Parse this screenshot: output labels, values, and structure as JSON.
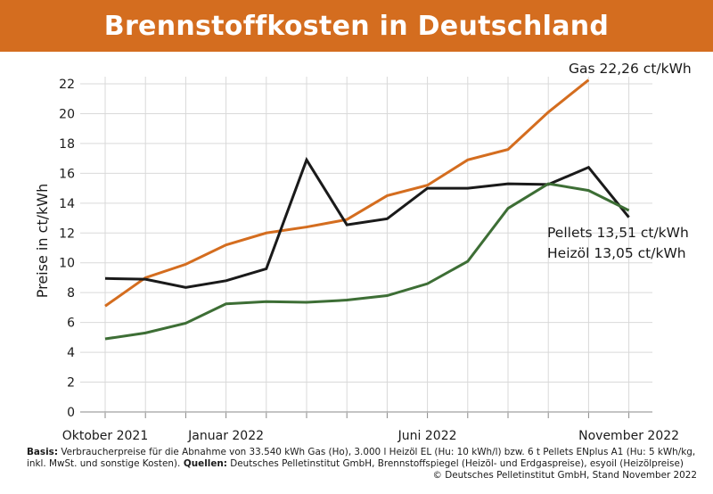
{
  "header": {
    "title": "Brennstoffkosten in Deutschland"
  },
  "chart_data": {
    "type": "line",
    "title": "Brennstoffkosten in Deutschland",
    "ylabel": "Preise in ct/kWh",
    "xlabel": "",
    "ylim": [
      0,
      22
    ],
    "yticks": [
      0,
      2,
      4,
      6,
      8,
      10,
      12,
      14,
      16,
      18,
      20,
      22
    ],
    "grid": true,
    "x": [
      "2021-10",
      "2021-11",
      "2021-12",
      "2022-01",
      "2022-02",
      "2022-03",
      "2022-04",
      "2022-05",
      "2022-06",
      "2022-07",
      "2022-08",
      "2022-09",
      "2022-10",
      "2022-11"
    ],
    "xtick_labels": [
      {
        "x": "2021-10",
        "label": "Oktober 2021"
      },
      {
        "x": "2022-01",
        "label": "Januar 2022"
      },
      {
        "x": "2022-06",
        "label": "Juni 2022"
      },
      {
        "x": "2022-11",
        "label": "November 2022"
      }
    ],
    "series": [
      {
        "name": "Gas",
        "color": "#d46d1f",
        "values": [
          7.1,
          9.0,
          9.9,
          11.2,
          12.0,
          12.4,
          12.9,
          14.5,
          15.2,
          16.9,
          17.6,
          20.1,
          22.26,
          null
        ]
      },
      {
        "name": "Heizöl",
        "color": "#1a1a1a",
        "values": [
          8.95,
          8.9,
          8.35,
          8.8,
          9.6,
          16.9,
          12.55,
          12.95,
          15.0,
          15.0,
          15.3,
          15.25,
          16.4,
          13.05
        ]
      },
      {
        "name": "Pellets",
        "color": "#3d6e35",
        "values": [
          4.9,
          5.3,
          5.95,
          7.25,
          7.4,
          7.35,
          7.5,
          7.8,
          8.6,
          10.1,
          13.65,
          15.3,
          14.85,
          13.51
        ]
      }
    ],
    "annotations": [
      {
        "series": "Gas",
        "text": "Gas 22,26 ct/kWh"
      },
      {
        "series": "Pellets",
        "text": "Pellets 13,51 ct/kWh"
      },
      {
        "series": "Heizöl",
        "text": "Heizöl 13,05 ct/kWh"
      }
    ]
  },
  "footer": {
    "basis_label": "Basis:",
    "basis_text": " Verbraucherpreise für die Abnahme von 33.540 kWh Gas (Ho), 3.000 l Heizöl EL (Hu: 10 kWh/l) bzw. 6 t Pellets ENplus A1 (Hu: 5 kWh/kg,",
    "basis_text2": "inkl. MwSt. und sonstige Kosten).",
    "sources_label": " Quellen:",
    "sources_text": " Deutsches Pelletinstitut GmbH, Brennstoffspiegel (Heizöl- und Erdgaspreise), esyoil (Heizölpreise)",
    "copyright": "© Deutsches Pelletinstitut GmbH, Stand November 2022"
  }
}
